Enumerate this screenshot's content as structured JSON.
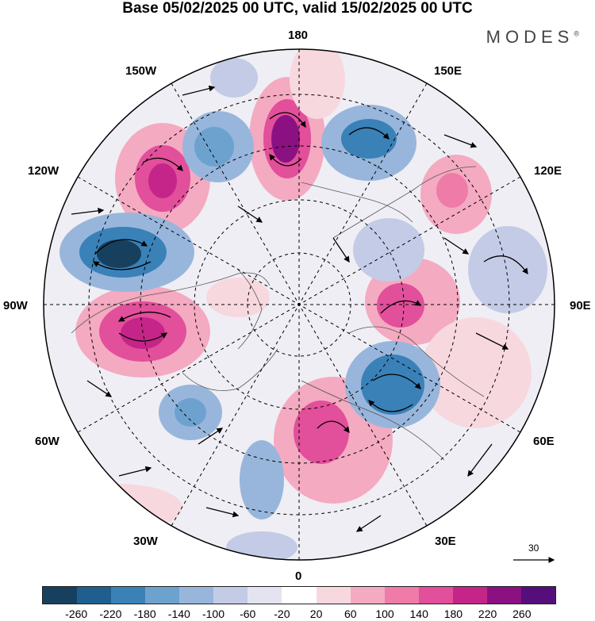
{
  "title": "Base 05/02/2025 00 UTC, valid 15/02/2025 00 UTC",
  "brand": "MODES",
  "brand_mark": "®",
  "longitude_labels": {
    "top": "180",
    "top_left": "150W",
    "top_right": "150E",
    "upper_left": "120W",
    "upper_right": "120E",
    "left": "90W",
    "right": "90E",
    "lower_left": "60W",
    "lower_right": "60E",
    "bottom_left": "30W",
    "bottom_right": "30E",
    "bottom": "0"
  },
  "vector_scale_label": "30",
  "colorbar": {
    "colors": [
      "#17405e",
      "#1f5f8f",
      "#3a81b8",
      "#6da2cf",
      "#98b6dc",
      "#c3cbe6",
      "#e4e4f1",
      "#ffffff",
      "#f8d8df",
      "#f4aac1",
      "#ef7ba8",
      "#e24f9a",
      "#c52589",
      "#8b1182",
      "#560e7c"
    ],
    "tick_labels": [
      "-260",
      "-220",
      "-180",
      "-140",
      "-100",
      "-60",
      "-20",
      "20",
      "60",
      "100",
      "140",
      "180",
      "220",
      "260"
    ]
  }
}
